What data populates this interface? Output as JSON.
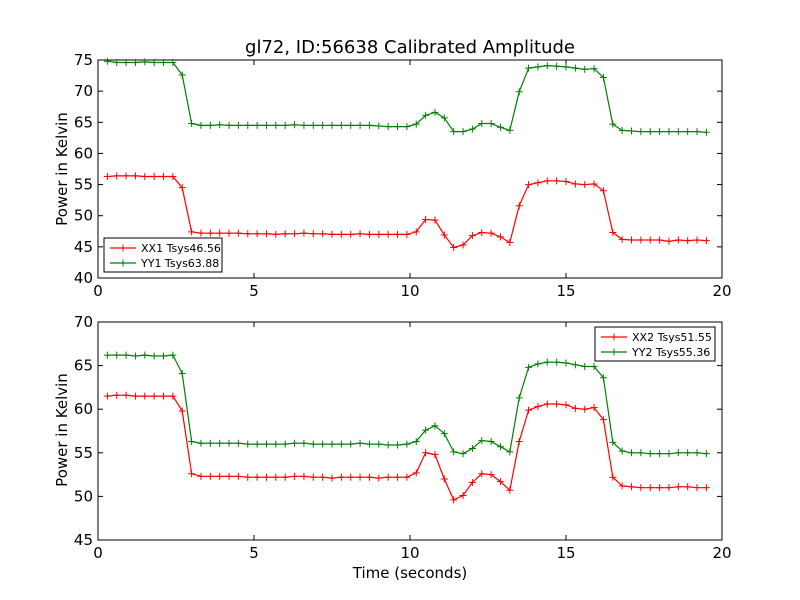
{
  "chart_data": [
    {
      "type": "line",
      "title": "gl72, ID:56638 Calibrated Amplitude",
      "xlabel": "",
      "ylabel": "Power in Kelvin",
      "xlim": [
        0,
        20
      ],
      "ylim": [
        40,
        75
      ],
      "xticks": [
        "0",
        "5",
        "10",
        "15",
        "20"
      ],
      "yticks": [
        "40",
        "45",
        "50",
        "55",
        "60",
        "65",
        "70",
        "75"
      ],
      "grid": false,
      "legend_position": "lower-left",
      "x": [
        0.3,
        0.6,
        0.9,
        1.2,
        1.5,
        1.8,
        2.1,
        2.4,
        2.7,
        3.0,
        3.3,
        3.6,
        3.9,
        4.2,
        4.5,
        4.8,
        5.1,
        5.4,
        5.7,
        6.0,
        6.3,
        6.6,
        6.9,
        7.2,
        7.5,
        7.8,
        8.1,
        8.4,
        8.7,
        9.0,
        9.3,
        9.6,
        9.9,
        10.2,
        10.5,
        10.8,
        11.1,
        11.4,
        11.7,
        12.0,
        12.3,
        12.6,
        12.9,
        13.2,
        13.5,
        13.8,
        14.1,
        14.4,
        14.7,
        15.0,
        15.3,
        15.6,
        15.9,
        16.2,
        16.5,
        16.8,
        17.1,
        17.4,
        17.7,
        18.0,
        18.3,
        18.6,
        18.9,
        19.2,
        19.5
      ],
      "series": [
        {
          "name": "XX1 Tsys46.56",
          "color": "#ff0000",
          "values": [
            56.3,
            56.4,
            56.4,
            56.4,
            56.3,
            56.3,
            56.3,
            56.3,
            54.5,
            47.4,
            47.2,
            47.2,
            47.2,
            47.2,
            47.2,
            47.1,
            47.1,
            47.1,
            47.0,
            47.1,
            47.1,
            47.2,
            47.1,
            47.1,
            47.0,
            47.0,
            47.0,
            47.1,
            47.0,
            47.0,
            47.0,
            47.0,
            47.0,
            47.4,
            49.4,
            49.3,
            46.9,
            44.9,
            45.3,
            46.8,
            47.3,
            47.2,
            46.6,
            45.7,
            51.6,
            55.0,
            55.3,
            55.6,
            55.6,
            55.5,
            55.1,
            55.0,
            55.1,
            54.0,
            47.3,
            46.2,
            46.1,
            46.1,
            46.1,
            46.1,
            45.9,
            46.1,
            46.0,
            46.1,
            46.0
          ]
        },
        {
          "name": "YY1 Tsys63.88",
          "color": "#008000",
          "values": [
            74.8,
            74.6,
            74.6,
            74.6,
            74.7,
            74.6,
            74.6,
            74.6,
            72.6,
            64.8,
            64.5,
            64.5,
            64.6,
            64.5,
            64.5,
            64.5,
            64.5,
            64.5,
            64.5,
            64.5,
            64.6,
            64.5,
            64.5,
            64.5,
            64.5,
            64.5,
            64.5,
            64.5,
            64.5,
            64.4,
            64.3,
            64.3,
            64.3,
            64.7,
            66.1,
            66.6,
            65.7,
            63.5,
            63.5,
            63.9,
            64.8,
            64.8,
            64.2,
            63.7,
            69.9,
            73.7,
            73.9,
            74.1,
            74.0,
            73.9,
            73.7,
            73.5,
            73.6,
            72.2,
            64.7,
            63.7,
            63.6,
            63.5,
            63.5,
            63.5,
            63.5,
            63.5,
            63.5,
            63.5,
            63.4
          ]
        }
      ]
    },
    {
      "type": "line",
      "title": "",
      "xlabel": "Time (seconds)",
      "ylabel": "Power in Kelvin",
      "xlim": [
        0,
        20
      ],
      "ylim": [
        45,
        70
      ],
      "xticks": [
        "0",
        "5",
        "10",
        "15",
        "20"
      ],
      "yticks": [
        "45",
        "50",
        "55",
        "60",
        "65",
        "70"
      ],
      "grid": false,
      "legend_position": "upper-right",
      "x": [
        0.3,
        0.6,
        0.9,
        1.2,
        1.5,
        1.8,
        2.1,
        2.4,
        2.7,
        3.0,
        3.3,
        3.6,
        3.9,
        4.2,
        4.5,
        4.8,
        5.1,
        5.4,
        5.7,
        6.0,
        6.3,
        6.6,
        6.9,
        7.2,
        7.5,
        7.8,
        8.1,
        8.4,
        8.7,
        9.0,
        9.3,
        9.6,
        9.9,
        10.2,
        10.5,
        10.8,
        11.1,
        11.4,
        11.7,
        12.0,
        12.3,
        12.6,
        12.9,
        13.2,
        13.5,
        13.8,
        14.1,
        14.4,
        14.7,
        15.0,
        15.3,
        15.6,
        15.9,
        16.2,
        16.5,
        16.8,
        17.1,
        17.4,
        17.7,
        18.0,
        18.3,
        18.6,
        18.9,
        19.2,
        19.5
      ],
      "series": [
        {
          "name": "XX2 Tsys51.55",
          "color": "#ff0000",
          "values": [
            61.5,
            61.6,
            61.6,
            61.5,
            61.5,
            61.5,
            61.5,
            61.5,
            59.8,
            52.6,
            52.3,
            52.3,
            52.3,
            52.3,
            52.3,
            52.2,
            52.2,
            52.2,
            52.2,
            52.2,
            52.3,
            52.3,
            52.2,
            52.2,
            52.1,
            52.2,
            52.2,
            52.2,
            52.2,
            52.1,
            52.2,
            52.2,
            52.2,
            52.7,
            55.0,
            54.8,
            52.0,
            49.6,
            50.1,
            51.6,
            52.6,
            52.5,
            51.7,
            50.7,
            56.3,
            59.9,
            60.3,
            60.6,
            60.6,
            60.5,
            60.1,
            60.0,
            60.2,
            58.8,
            52.2,
            51.2,
            51.1,
            51.0,
            51.0,
            51.0,
            51.0,
            51.1,
            51.1,
            51.0,
            51.0
          ]
        },
        {
          "name": "YY2 Tsys55.36",
          "color": "#008000",
          "values": [
            66.2,
            66.2,
            66.2,
            66.1,
            66.2,
            66.1,
            66.1,
            66.2,
            64.1,
            56.3,
            56.1,
            56.1,
            56.1,
            56.1,
            56.1,
            56.0,
            56.0,
            56.0,
            56.0,
            56.0,
            56.1,
            56.1,
            56.0,
            56.0,
            56.0,
            56.0,
            56.0,
            56.1,
            56.0,
            56.0,
            55.9,
            55.9,
            56.0,
            56.3,
            57.6,
            58.1,
            57.2,
            55.1,
            54.9,
            55.5,
            56.4,
            56.3,
            55.7,
            55.1,
            61.3,
            64.8,
            65.2,
            65.4,
            65.4,
            65.3,
            65.1,
            64.9,
            64.9,
            63.6,
            56.2,
            55.2,
            55.0,
            55.0,
            54.9,
            54.9,
            54.9,
            55.0,
            55.0,
            55.0,
            54.9
          ]
        }
      ]
    }
  ]
}
